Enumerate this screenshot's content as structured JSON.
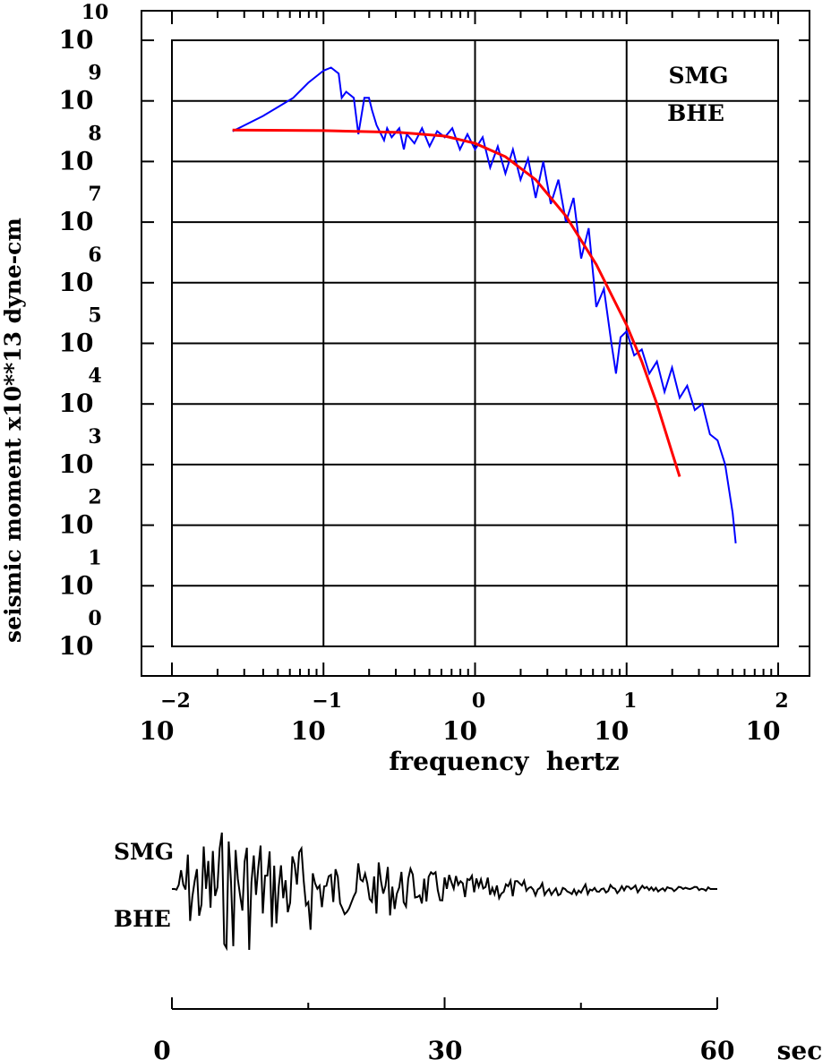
{
  "chart_data": [
    {
      "type": "line",
      "scale": "log-log",
      "xlabel": "frequency  hertz",
      "ylabel": "seismic moment x10**13 dyne-cm",
      "xlim_log10": [
        -2,
        2
      ],
      "ylim_log10": [
        0,
        10
      ],
      "x_ticks": {
        "base": "10",
        "exponents": [
          "−2",
          "−1",
          "0",
          "1",
          "2"
        ]
      },
      "y_ticks": {
        "base": "10",
        "exponents": [
          "0",
          "1",
          "2",
          "3",
          "4",
          "5",
          "6",
          "7",
          "8",
          "9",
          "10"
        ]
      },
      "grid": true,
      "annotation": [
        "SMG",
        "BHE"
      ],
      "colors": {
        "spectrum": "#0000ff",
        "model": "#ff0000",
        "axes": "#000000"
      },
      "series": [
        {
          "role": "observed spectrum",
          "points_log10": [
            [
              -1.6,
              8.5
            ],
            [
              -1.4,
              8.75
            ],
            [
              -1.3,
              8.9
            ],
            [
              -1.2,
              9.05
            ],
            [
              -1.1,
              9.3
            ],
            [
              -1.05,
              9.4
            ],
            [
              -1.0,
              9.5
            ],
            [
              -0.95,
              9.55
            ],
            [
              -0.9,
              9.45
            ],
            [
              -0.88,
              9.05
            ],
            [
              -0.85,
              9.15
            ],
            [
              -0.8,
              9.05
            ],
            [
              -0.77,
              8.45
            ],
            [
              -0.73,
              9.05
            ],
            [
              -0.7,
              9.05
            ],
            [
              -0.68,
              8.85
            ],
            [
              -0.65,
              8.6
            ],
            [
              -0.6,
              8.35
            ],
            [
              -0.58,
              8.55
            ],
            [
              -0.55,
              8.4
            ],
            [
              -0.5,
              8.55
            ],
            [
              -0.47,
              8.2
            ],
            [
              -0.45,
              8.45
            ],
            [
              -0.4,
              8.3
            ],
            [
              -0.35,
              8.55
            ],
            [
              -0.3,
              8.25
            ],
            [
              -0.25,
              8.5
            ],
            [
              -0.2,
              8.4
            ],
            [
              -0.15,
              8.55
            ],
            [
              -0.1,
              8.2
            ],
            [
              -0.05,
              8.45
            ],
            [
              0.0,
              8.2
            ],
            [
              0.05,
              8.4
            ],
            [
              0.1,
              7.9
            ],
            [
              0.15,
              8.25
            ],
            [
              0.2,
              7.8
            ],
            [
              0.25,
              8.2
            ],
            [
              0.3,
              7.7
            ],
            [
              0.35,
              8.05
            ],
            [
              0.4,
              7.4
            ],
            [
              0.45,
              8.0
            ],
            [
              0.5,
              7.3
            ],
            [
              0.55,
              7.7
            ],
            [
              0.6,
              7.0
            ],
            [
              0.65,
              7.4
            ],
            [
              0.7,
              6.4
            ],
            [
              0.75,
              6.9
            ],
            [
              0.8,
              5.6
            ],
            [
              0.85,
              5.9
            ],
            [
              0.9,
              5.0
            ],
            [
              0.93,
              4.5
            ],
            [
              0.96,
              5.1
            ],
            [
              1.0,
              5.2
            ],
            [
              1.05,
              4.8
            ],
            [
              1.1,
              4.9
            ],
            [
              1.15,
              4.5
            ],
            [
              1.2,
              4.7
            ],
            [
              1.25,
              4.2
            ],
            [
              1.3,
              4.6
            ],
            [
              1.35,
              4.1
            ],
            [
              1.4,
              4.3
            ],
            [
              1.45,
              3.9
            ],
            [
              1.5,
              4.0
            ],
            [
              1.55,
              3.5
            ],
            [
              1.6,
              3.4
            ],
            [
              1.65,
              3.0
            ],
            [
              1.7,
              2.2
            ],
            [
              1.72,
              1.7
            ]
          ]
        },
        {
          "role": "model fit",
          "points_log10": [
            [
              -1.6,
              8.52
            ],
            [
              -1.0,
              8.51
            ],
            [
              -0.5,
              8.48
            ],
            [
              -0.2,
              8.42
            ],
            [
              0.0,
              8.3
            ],
            [
              0.2,
              8.08
            ],
            [
              0.4,
              7.7
            ],
            [
              0.6,
              7.1
            ],
            [
              0.8,
              6.3
            ],
            [
              1.0,
              5.3
            ],
            [
              1.1,
              4.7
            ],
            [
              1.2,
              4.0
            ],
            [
              1.3,
              3.2
            ],
            [
              1.35,
              2.8
            ]
          ]
        }
      ]
    },
    {
      "type": "line",
      "role": "seismogram",
      "annotation": [
        "SMG",
        "BHE"
      ],
      "xlabel": "sec",
      "xlim": [
        0,
        60
      ],
      "x_ticks": [
        "0",
        "30",
        "60"
      ],
      "colors": {
        "trace": "#000000"
      }
    }
  ]
}
